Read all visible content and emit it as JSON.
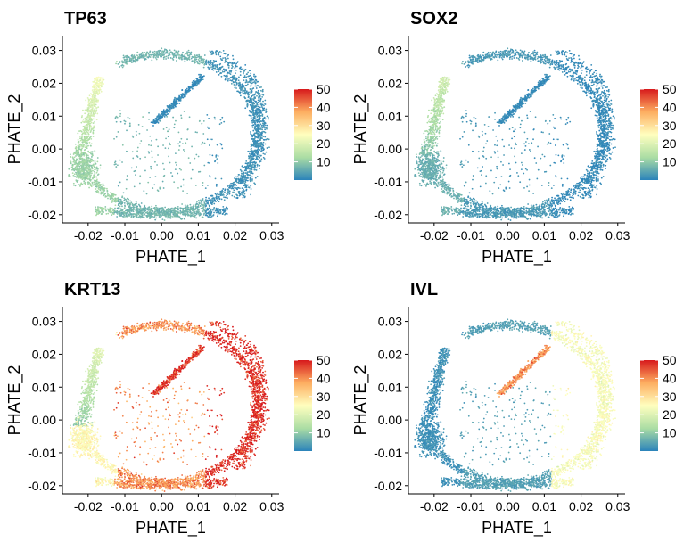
{
  "figure": {
    "xlabel": "PHATE_1",
    "ylabel": "PHATE_2"
  },
  "chart_data": [
    {
      "type": "scatter",
      "title": "TP63",
      "xlabel": "PHATE_1",
      "ylabel": "PHATE_2",
      "xlim": [
        -0.027,
        0.032
      ],
      "ylim": [
        -0.0225,
        0.0345
      ],
      "xticks": [
        "-0.02",
        "-0.01",
        "0.00",
        "0.01",
        "0.02",
        "0.03"
      ],
      "yticks": [
        "0.03",
        "0.02",
        "0.01",
        "0.00",
        "-0.01",
        "-0.02"
      ],
      "colorbar": {
        "min": 0,
        "max": 50,
        "ticks": [
          "50",
          "40",
          "30",
          "20",
          "10"
        ]
      },
      "colors": [
        "#2b83ba",
        "#abdda4",
        "#ffffbf",
        "#fdae61",
        "#d7191c"
      ],
      "regions": [
        {
          "name": "left arm",
          "value": 18
        },
        {
          "name": "left lower",
          "value": 11
        },
        {
          "name": "bottom",
          "value": 7
        },
        {
          "name": "right side",
          "value": 2
        },
        {
          "name": "inner arm",
          "value": 1
        }
      ]
    },
    {
      "type": "scatter",
      "title": "SOX2",
      "xlabel": "PHATE_1",
      "ylabel": "PHATE_2",
      "xlim": [
        -0.027,
        0.032
      ],
      "ylim": [
        -0.0225,
        0.0345
      ],
      "xticks": [
        "-0.02",
        "-0.01",
        "0.00",
        "0.01",
        "0.02",
        "0.03"
      ],
      "yticks": [
        "0.03",
        "0.02",
        "0.01",
        "0.00",
        "-0.01",
        "-0.02"
      ],
      "colorbar": {
        "min": 0,
        "max": 50,
        "ticks": [
          "50",
          "40",
          "30",
          "20",
          "10"
        ]
      },
      "colors": [
        "#2b83ba",
        "#abdda4",
        "#ffffbf",
        "#fdae61",
        "#d7191c"
      ],
      "regions": [
        {
          "name": "left arm",
          "value": 14
        },
        {
          "name": "left lower",
          "value": 6
        },
        {
          "name": "bottom",
          "value": 3
        },
        {
          "name": "right side",
          "value": 1
        },
        {
          "name": "inner arm",
          "value": 1
        }
      ]
    },
    {
      "type": "scatter",
      "title": "KRT13",
      "xlabel": "PHATE_1",
      "ylabel": "PHATE_2",
      "xlim": [
        -0.027,
        0.032
      ],
      "ylim": [
        -0.0225,
        0.0345
      ],
      "xticks": [
        "-0.02",
        "-0.01",
        "0.00",
        "0.01",
        "0.02",
        "0.03"
      ],
      "yticks": [
        "0.03",
        "0.02",
        "0.01",
        "0.00",
        "-0.01",
        "-0.02"
      ],
      "colorbar": {
        "min": 0,
        "max": 50,
        "ticks": [
          "50",
          "40",
          "30",
          "20",
          "10"
        ]
      },
      "colors": [
        "#2b83ba",
        "#abdda4",
        "#ffffbf",
        "#fdae61",
        "#d7191c"
      ],
      "regions": [
        {
          "name": "left arm",
          "value": 16
        },
        {
          "name": "left lower",
          "value": 26
        },
        {
          "name": "bottom",
          "value": 40
        },
        {
          "name": "right side",
          "value": 49
        },
        {
          "name": "inner arm",
          "value": 48
        }
      ]
    },
    {
      "type": "scatter",
      "title": "IVL",
      "xlabel": "PHATE_1",
      "ylabel": "PHATE_2",
      "xlim": [
        -0.027,
        0.032
      ],
      "ylim": [
        -0.0225,
        0.0345
      ],
      "xticks": [
        "-0.02",
        "-0.01",
        "0.00",
        "0.01",
        "0.02",
        "0.03"
      ],
      "yticks": [
        "0.03",
        "0.02",
        "0.01",
        "0.00",
        "-0.01",
        "-0.02"
      ],
      "colorbar": {
        "min": 0,
        "max": 50,
        "ticks": [
          "50",
          "40",
          "30",
          "20",
          "10"
        ]
      },
      "colors": [
        "#2b83ba",
        "#abdda4",
        "#ffffbf",
        "#fdae61",
        "#d7191c"
      ],
      "regions": [
        {
          "name": "left arm",
          "value": 2
        },
        {
          "name": "left lower",
          "value": 2
        },
        {
          "name": "bottom",
          "value": 4
        },
        {
          "name": "right side",
          "value": 24
        },
        {
          "name": "inner arm",
          "value": 40
        }
      ]
    }
  ]
}
